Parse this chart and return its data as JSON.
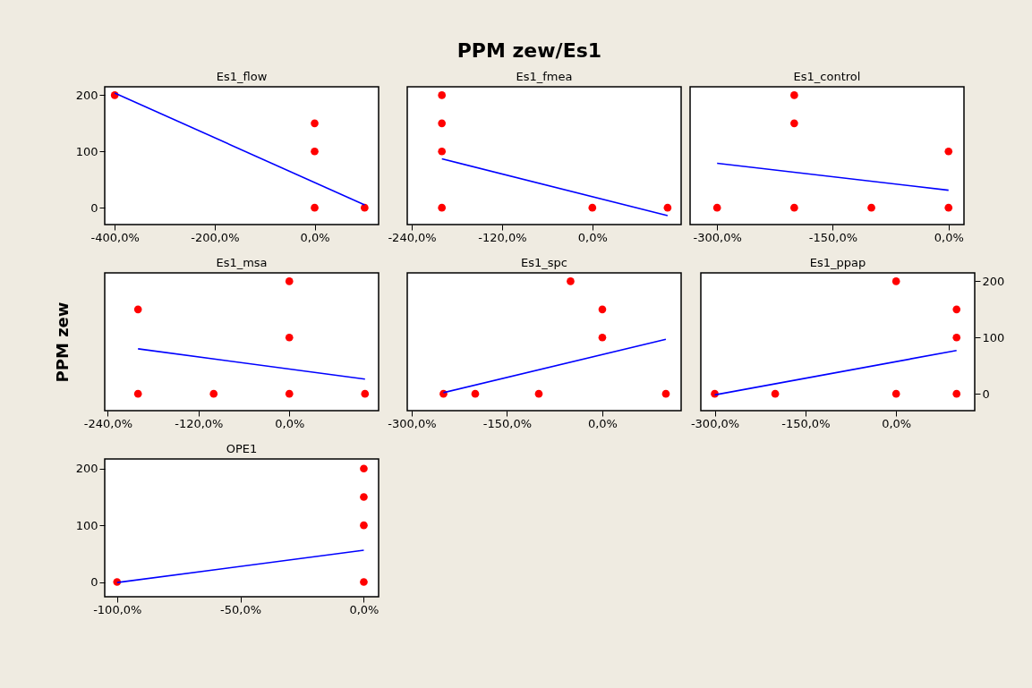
{
  "chart_data": [
    {
      "type": "scatter",
      "title": "Es1_flow",
      "annotations": [
        "PPM zew/Es1"
      ],
      "grid": false,
      "xlim": [
        -420,
        128
      ],
      "ylim": [
        -30,
        215
      ],
      "xticks": [
        {
          "value": -400,
          "label": "-400,0%"
        },
        {
          "value": -200,
          "label": "-200,0%"
        },
        {
          "value": 0,
          "label": "0,0%"
        }
      ],
      "yticks": [
        0,
        100,
        200
      ],
      "series": [
        {
          "marker": "circle",
          "color": "#ff0000",
          "x": [
            -400,
            0,
            0,
            0,
            100
          ],
          "values": [
            200,
            150,
            100,
            0,
            0
          ]
        },
        {
          "type": "line",
          "color": "#0000ff",
          "x": [
            -400,
            100
          ],
          "values": [
            204,
            5
          ]
        }
      ]
    },
    {
      "type": "scatter",
      "title": "Es1_fmea",
      "grid": false,
      "tick_labels": "x",
      "xlim": [
        -246,
        118
      ],
      "ylim": [
        -30,
        215
      ],
      "xticks": [
        {
          "value": -240,
          "label": "-240,0%"
        },
        {
          "value": -120,
          "label": "-120,0%"
        },
        {
          "value": 0,
          "label": "0,0%"
        }
      ],
      "yticks": [
        0,
        100,
        200
      ],
      "series": [
        {
          "marker": "circle",
          "color": "#ff0000",
          "x": [
            -200,
            -200,
            -200,
            -200,
            0,
            100
          ],
          "values": [
            200,
            150,
            100,
            0,
            0,
            0
          ]
        },
        {
          "type": "line",
          "color": "#0000ff",
          "x": [
            -200,
            100
          ],
          "values": [
            87,
            -14
          ]
        }
      ]
    },
    {
      "type": "scatter",
      "title": "Es1_control",
      "grid": false,
      "tick_labels": "x",
      "xlim": [
        -335,
        20
      ],
      "ylim": [
        -30,
        215
      ],
      "xticks": [
        {
          "value": -300,
          "label": "-300,0%"
        },
        {
          "value": -150,
          "label": "-150,0%"
        },
        {
          "value": 0,
          "label": "0,0%"
        }
      ],
      "yticks": [
        0,
        100,
        200
      ],
      "series": [
        {
          "marker": "circle",
          "color": "#ff0000",
          "x": [
            -300,
            -200,
            -200,
            -200,
            -100,
            0,
            0
          ],
          "values": [
            0,
            200,
            150,
            0,
            0,
            100,
            0
          ]
        },
        {
          "type": "line",
          "color": "#0000ff",
          "x": [
            -300,
            0
          ],
          "values": [
            79,
            31
          ]
        }
      ]
    },
    {
      "type": "scatter",
      "title": "Es1_msa",
      "ylabel": "PPM zew",
      "grid": false,
      "tick_labels": "x",
      "xlim": [
        -244,
        118
      ],
      "ylim": [
        -30,
        215
      ],
      "xticks": [
        {
          "value": -240,
          "label": "-240,0%"
        },
        {
          "value": -120,
          "label": "-120,0%"
        },
        {
          "value": 0,
          "label": "0,0%"
        }
      ],
      "yticks": [
        0,
        100,
        200
      ],
      "series": [
        {
          "marker": "circle",
          "color": "#ff0000",
          "x": [
            -200,
            -200,
            -100,
            0,
            0,
            0,
            100
          ],
          "values": [
            150,
            0,
            0,
            200,
            100,
            0,
            0
          ]
        },
        {
          "type": "line",
          "color": "#0000ff",
          "x": [
            -200,
            100
          ],
          "values": [
            80,
            26
          ]
        }
      ]
    },
    {
      "type": "scatter",
      "title": "Es1_spc",
      "grid": false,
      "tick_labels": "x",
      "xlim": [
        -307,
        124
      ],
      "ylim": [
        -30,
        215
      ],
      "xticks": [
        {
          "value": -300,
          "label": "-300,0%"
        },
        {
          "value": -150,
          "label": "-150,0%"
        },
        {
          "value": 0,
          "label": "0,0%"
        }
      ],
      "yticks": [
        0,
        100,
        200
      ],
      "series": [
        {
          "marker": "circle",
          "color": "#ff0000",
          "x": [
            -250,
            -200,
            -100,
            -50,
            0,
            0,
            100
          ],
          "values": [
            0,
            0,
            0,
            200,
            150,
            100,
            0
          ]
        },
        {
          "type": "line",
          "color": "#0000ff",
          "x": [
            -250,
            100
          ],
          "values": [
            2,
            97
          ]
        }
      ]
    },
    {
      "type": "scatter",
      "title": "Es1_ppap",
      "grid": false,
      "xlim": [
        -323,
        130
      ],
      "ylim": [
        -30,
        215
      ],
      "xticks": [
        {
          "value": -300,
          "label": "-300,0%"
        },
        {
          "value": -150,
          "label": "-150,0%"
        },
        {
          "value": 0,
          "label": "0,0%"
        }
      ],
      "yticks": [
        0,
        100,
        200
      ],
      "series": [
        {
          "marker": "circle",
          "color": "#ff0000",
          "x": [
            -300,
            -200,
            0,
            0,
            100,
            100,
            100
          ],
          "values": [
            0,
            0,
            200,
            0,
            150,
            100,
            0
          ]
        },
        {
          "type": "line",
          "color": "#0000ff",
          "x": [
            -300,
            100
          ],
          "values": [
            -2,
            77
          ]
        }
      ]
    },
    {
      "type": "scatter",
      "title": "OPE1",
      "grid": false,
      "xlim": [
        -105,
        6
      ],
      "ylim": [
        -26,
        217
      ],
      "xticks": [
        {
          "value": -100,
          "label": "-100,0%"
        },
        {
          "value": -50,
          "label": "-50,0%"
        },
        {
          "value": 0,
          "label": "0,0%"
        }
      ],
      "yticks": [
        0,
        100,
        200
      ],
      "series": [
        {
          "marker": "circle",
          "color": "#ff0000",
          "x": [
            -100,
            0,
            0,
            0,
            0
          ],
          "values": [
            0,
            200,
            150,
            100,
            0
          ]
        },
        {
          "type": "line",
          "color": "#0000ff",
          "x": [
            -100,
            0
          ],
          "values": [
            -1,
            56
          ]
        }
      ]
    }
  ]
}
